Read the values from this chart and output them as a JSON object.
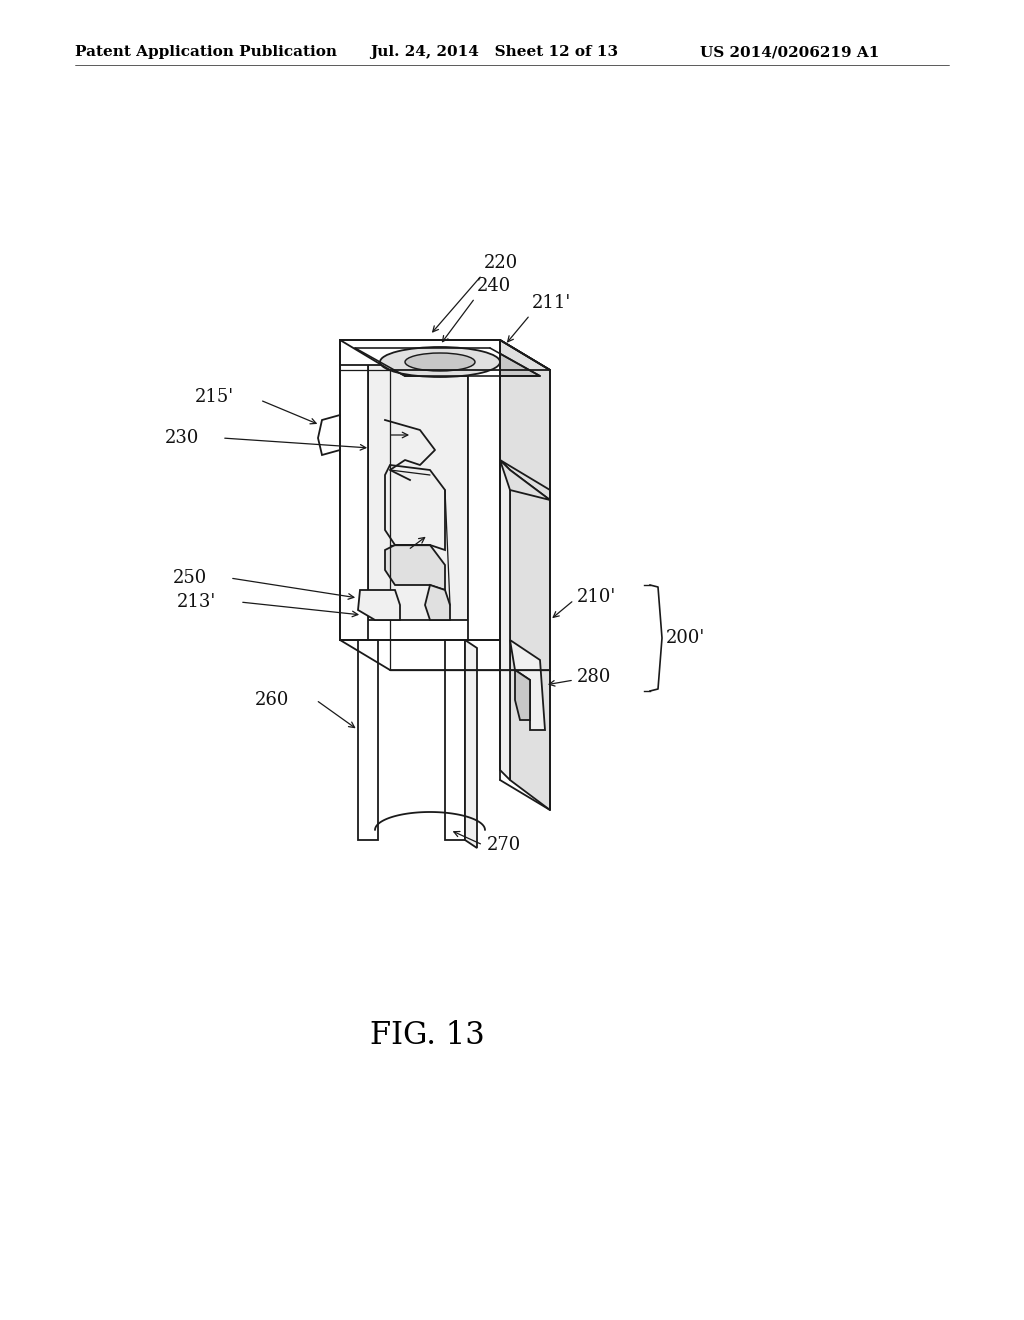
{
  "background_color": "#ffffff",
  "header_left": "Patent Application Publication",
  "header_center": "Jul. 24, 2014   Sheet 12 of 13",
  "header_right": "US 2014/0206219 A1",
  "fig_label": "FIG. 13",
  "fig_label_fontsize": 22,
  "header_fontsize": 11,
  "label_fontsize": 13,
  "line_color": "#1a1a1a",
  "line_width": 1.3,
  "face_white": "#ffffff",
  "face_light": "#f0f0f0",
  "face_mid": "#e0e0e0",
  "face_dark": "#c8c8c8"
}
